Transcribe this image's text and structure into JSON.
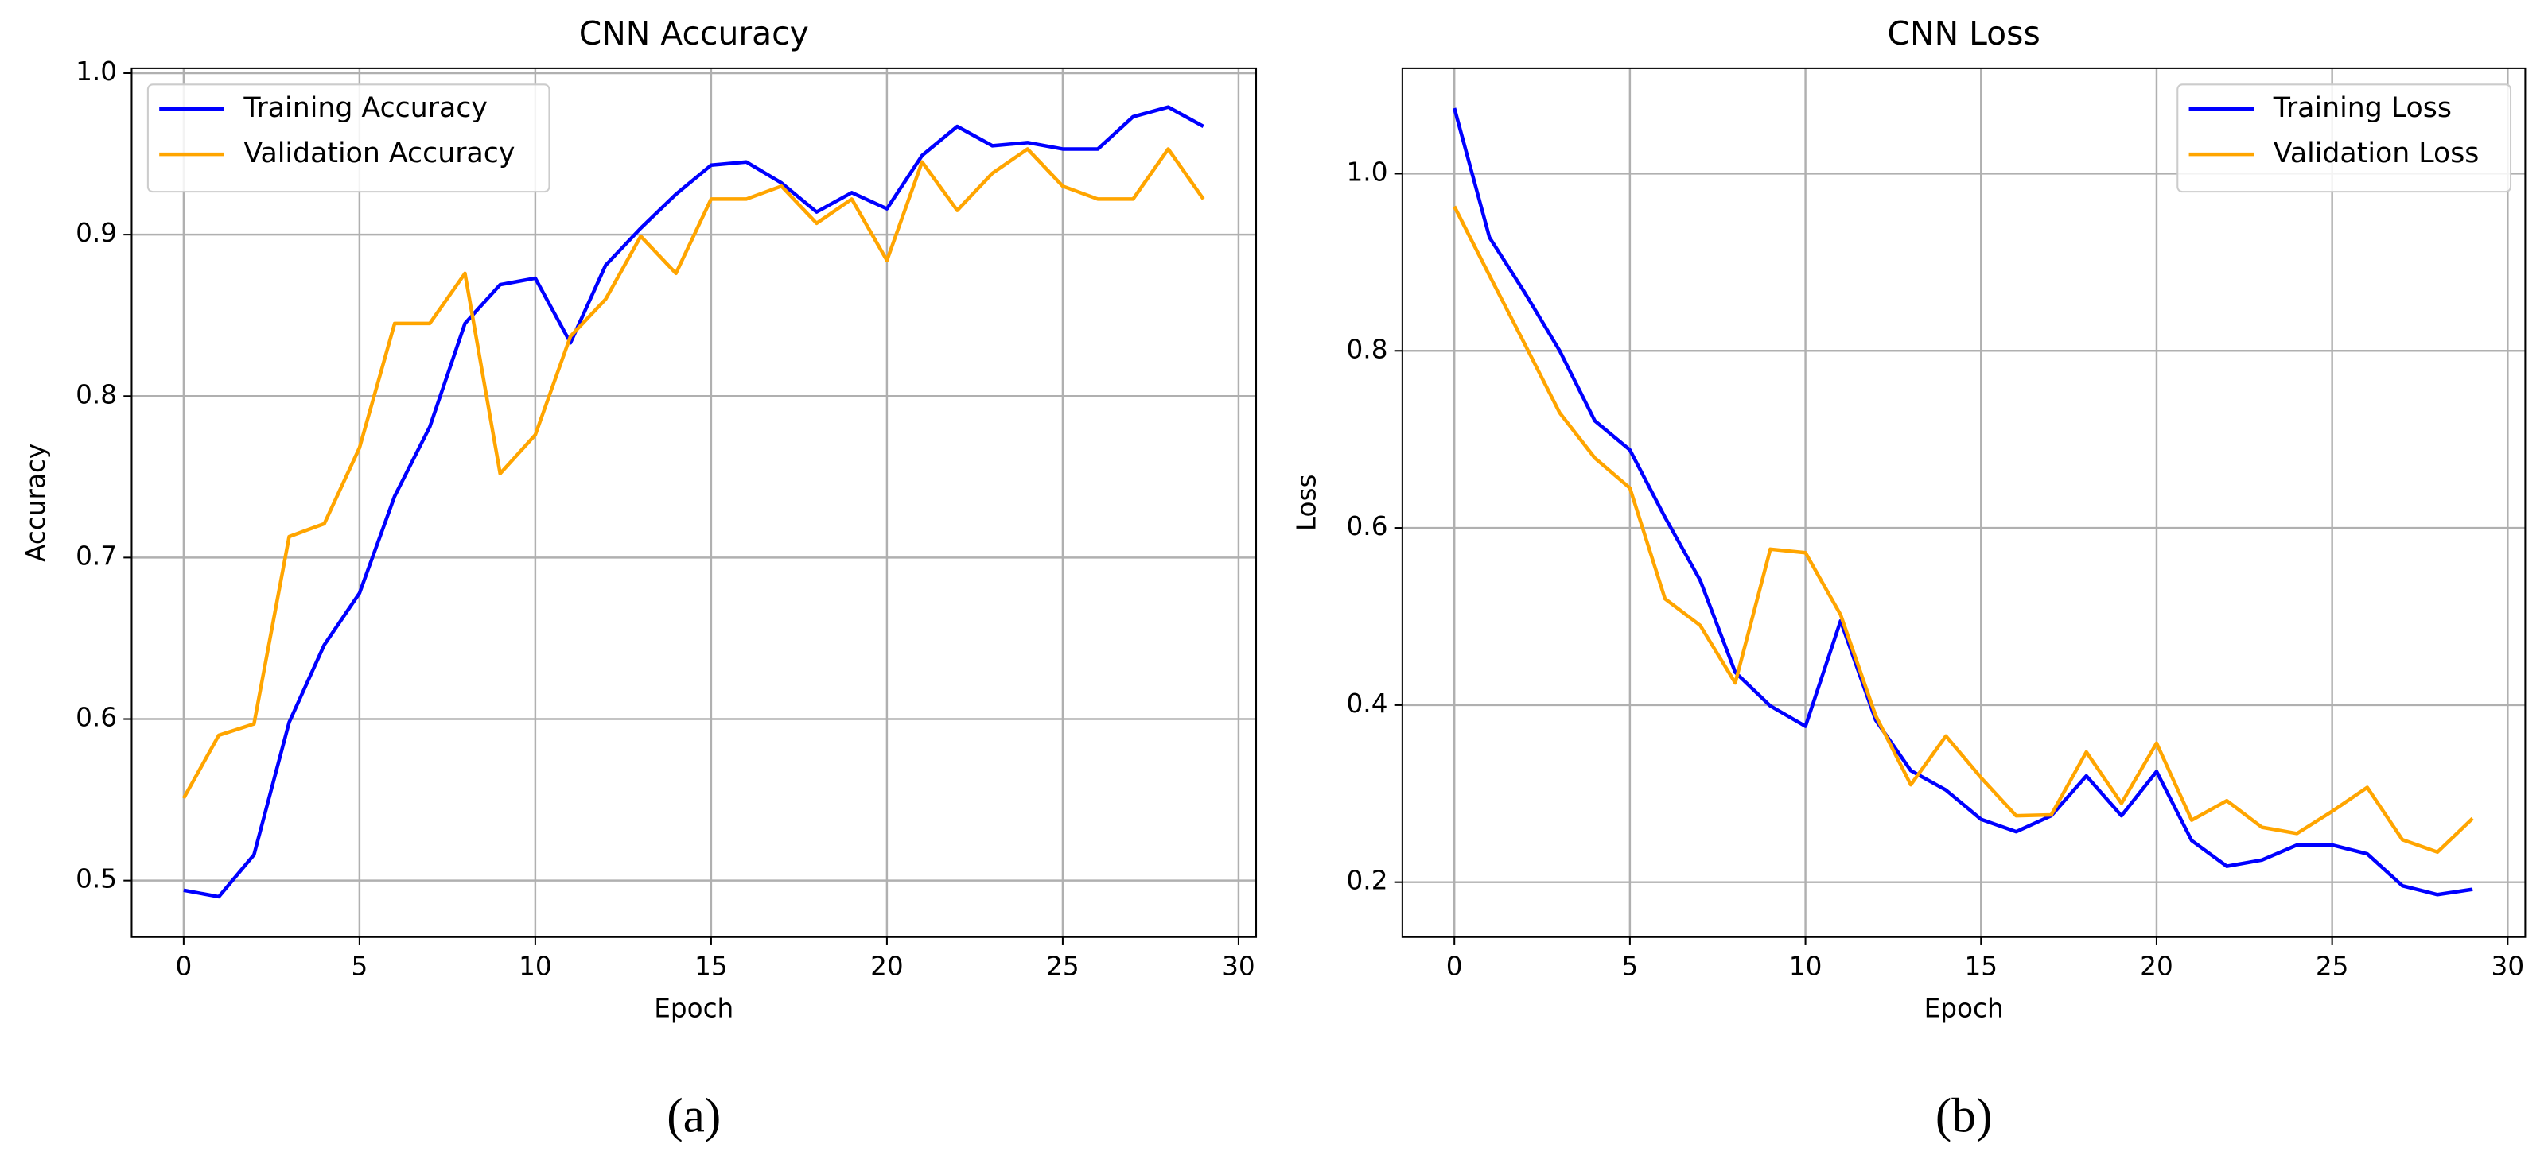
{
  "chart_data": [
    {
      "type": "line",
      "title": "CNN Accuracy",
      "x_label": "Epoch",
      "y_label": "Accuracy",
      "caption": "(a)",
      "x": [
        0,
        1,
        2,
        3,
        4,
        5,
        6,
        7,
        8,
        9,
        10,
        11,
        12,
        13,
        14,
        15,
        16,
        17,
        18,
        19,
        20,
        21,
        22,
        23,
        24,
        25,
        26,
        27,
        28,
        29
      ],
      "series": [
        {
          "name": "Training Accuracy",
          "color": "#0000ff",
          "values": [
            0.494,
            0.49,
            0.516,
            0.598,
            0.646,
            0.678,
            0.738,
            0.781,
            0.845,
            0.869,
            0.873,
            0.833,
            0.881,
            0.904,
            0.925,
            0.943,
            0.945,
            0.932,
            0.914,
            0.926,
            0.916,
            0.949,
            0.967,
            0.955,
            0.957,
            0.953,
            0.953,
            0.973,
            0.979,
            0.967
          ]
        },
        {
          "name": "Validation Accuracy",
          "color": "#ffa500",
          "values": [
            0.551,
            0.59,
            0.597,
            0.713,
            0.721,
            0.768,
            0.845,
            0.845,
            0.876,
            0.752,
            0.776,
            0.837,
            0.86,
            0.899,
            0.876,
            0.922,
            0.922,
            0.93,
            0.907,
            0.922,
            0.884,
            0.945,
            0.915,
            0.938,
            0.953,
            0.93,
            0.922,
            0.922,
            0.953,
            0.922
          ]
        }
      ],
      "xlim": [
        -1.48,
        30.5
      ],
      "xticks": [
        0,
        5,
        10,
        15,
        20,
        25,
        30
      ],
      "ylim": [
        0.465,
        1.003
      ],
      "yticks": [
        0.5,
        0.6,
        0.7,
        0.8,
        0.9,
        {
          "value": 1,
          "label": "1.0"
        }
      ],
      "grid": true,
      "legend": "upper left"
    },
    {
      "type": "line",
      "title": "CNN Loss",
      "x_label": "Epoch",
      "y_label": "Loss",
      "caption": "(b)",
      "x": [
        0,
        1,
        2,
        3,
        4,
        5,
        6,
        7,
        8,
        9,
        10,
        11,
        12,
        13,
        14,
        15,
        16,
        17,
        18,
        19,
        20,
        21,
        22,
        23,
        24,
        25,
        26,
        27,
        28,
        29
      ],
      "series": [
        {
          "name": "Training Loss",
          "color": "#0000ff",
          "values": [
            1.074,
            0.928,
            0.866,
            0.8,
            0.721,
            0.688,
            0.612,
            0.541,
            0.437,
            0.399,
            0.376,
            0.495,
            0.383,
            0.326,
            0.304,
            0.271,
            0.257,
            0.275,
            0.32,
            0.275,
            0.325,
            0.247,
            0.218,
            0.225,
            0.242,
            0.242,
            0.232,
            0.196,
            0.186,
            0.192
          ]
        },
        {
          "name": "Validation Loss",
          "color": "#ffa500",
          "values": [
            0.963,
            0.885,
            0.808,
            0.73,
            0.679,
            0.645,
            0.52,
            0.49,
            0.425,
            0.576,
            0.572,
            0.502,
            0.388,
            0.31,
            0.365,
            0.318,
            0.275,
            0.276,
            0.347,
            0.289,
            0.357,
            0.27,
            0.292,
            0.262,
            0.255,
            0.28,
            0.307,
            0.248,
            0.234,
            0.272
          ]
        }
      ],
      "xlim": [
        -1.48,
        30.5
      ],
      "xticks": [
        0,
        5,
        10,
        15,
        20,
        25,
        30
      ],
      "ylim": [
        0.138,
        1.119
      ],
      "yticks": [
        0.2,
        0.4,
        0.6,
        0.8,
        {
          "value": 1,
          "label": "1.0"
        }
      ],
      "grid": true,
      "legend": "upper right"
    }
  ]
}
